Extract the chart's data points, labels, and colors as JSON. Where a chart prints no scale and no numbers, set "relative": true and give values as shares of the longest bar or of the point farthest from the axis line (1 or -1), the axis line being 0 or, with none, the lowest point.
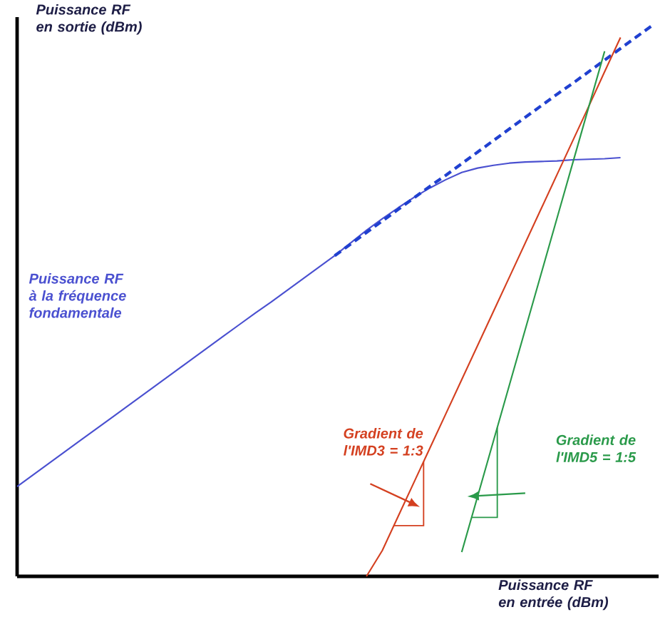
{
  "chart_data": {
    "type": "line",
    "relative": true,
    "xlabel": "Puissance RF en entrée (dBm)",
    "ylabel": "Puissance RF en sortie (dBm)",
    "categories": [
      null,
      null,
      null,
      null,
      null,
      null,
      null,
      null,
      null,
      null,
      null,
      null,
      null,
      null,
      null,
      null,
      null,
      null,
      null,
      null,
      null,
      null,
      null,
      null,
      null,
      null,
      null,
      null,
      null,
      null,
      null,
      null,
      null,
      null,
      null,
      null,
      null,
      null,
      null,
      null,
      null
    ],
    "series": [
      {
        "name": "Puissance RF à la fréquence fondamentale",
        "color": "#4a50d0",
        "line_style": "solid",
        "values": [
          0.163,
          0.184,
          0.205,
          0.226,
          0.247,
          0.268,
          0.289,
          0.31,
          0.331,
          0.352,
          0.373,
          0.394,
          0.415,
          0.436,
          0.457,
          0.478,
          0.498,
          0.519,
          0.54,
          0.561,
          0.582,
          0.605,
          0.628,
          0.649,
          0.669,
          0.688,
          0.705,
          0.72,
          0.733,
          0.741,
          0.746,
          0.75,
          0.752,
          0.753,
          0.754,
          0.756,
          0.757,
          0.758,
          0.76,
          null,
          null
        ]
      },
      {
        "color": "#2040d0",
        "line_style": "dashed",
        "values": [
          null,
          null,
          null,
          null,
          null,
          null,
          null,
          null,
          null,
          null,
          null,
          null,
          null,
          null,
          null,
          null,
          null,
          null,
          null,
          null,
          0.582,
          0.603,
          0.624,
          0.645,
          0.666,
          0.687,
          0.708,
          0.728,
          0.749,
          0.77,
          0.791,
          0.812,
          0.833,
          0.854,
          0.875,
          0.895,
          0.916,
          0.937,
          0.958,
          0.979,
          1.0
        ]
      },
      {
        "name": "Gradient de l'IMD3 = 1:3",
        "color": "#d44020",
        "line_style": "solid",
        "values": [
          null,
          null,
          null,
          null,
          null,
          null,
          null,
          null,
          null,
          null,
          null,
          null,
          null,
          null,
          null,
          null,
          null,
          null,
          null,
          null,
          null,
          null,
          0,
          0.047,
          0.109,
          0.171,
          0.233,
          0.295,
          0.357,
          0.419,
          0.481,
          0.543,
          0.605,
          0.667,
          0.729,
          0.791,
          0.853,
          0.916,
          0.978,
          null,
          null
        ]
      },
      {
        "name": "Gradient de l'IMD5 = 1:5",
        "color": "#2a9a4a",
        "line_style": "solid",
        "values": [
          null,
          null,
          null,
          null,
          null,
          null,
          null,
          null,
          null,
          null,
          null,
          null,
          null,
          null,
          null,
          null,
          null,
          null,
          null,
          null,
          null,
          null,
          null,
          null,
          null,
          null,
          null,
          null,
          0.044,
          0.145,
          0.246,
          0.347,
          0.448,
          0.549,
          0.65,
          0.751,
          0.852,
          0.953,
          null,
          null,
          null
        ]
      }
    ]
  }
}
